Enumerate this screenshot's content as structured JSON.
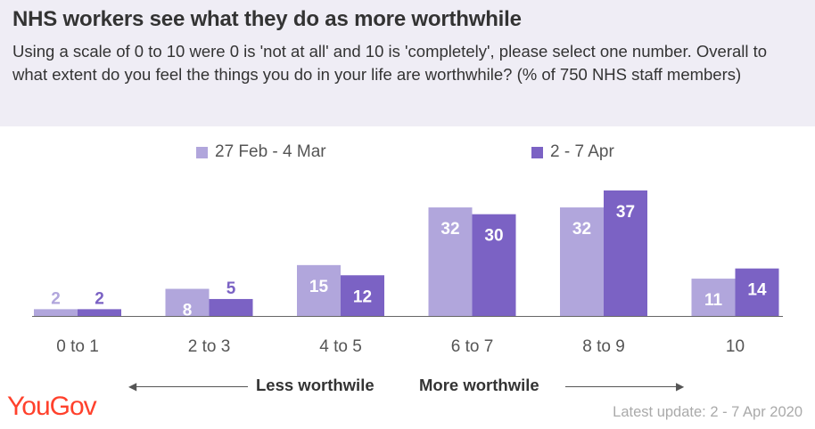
{
  "title": "NHS workers see what they do as more worthwhile",
  "subtitle": "Using a scale of 0 to 10 were 0 is 'not at all' and 10 is 'completely', please select one number. Overall to what extent do you feel the things you do in your life are worthwhile? (% of 750 NHS staff members)",
  "axis_annotations": {
    "less": "Less worthwile",
    "more": "More worthwile"
  },
  "brand": "YouGov",
  "latest_update": "Latest update: 2 - 7 Apr 2020",
  "colors": {
    "series1": "#b1a6dc",
    "series2": "#7b62c4",
    "header_bg": "#efedf5",
    "brand": "#ff412c"
  },
  "chart_data": {
    "type": "bar",
    "categories": [
      "0 to 1",
      "2 to 3",
      "4 to 5",
      "6 to 7",
      "8 to 9",
      "10"
    ],
    "series": [
      {
        "name": "27 Feb - 4 Mar",
        "values": [
          2,
          8,
          15,
          32,
          32,
          11
        ]
      },
      {
        "name": "2 - 7 Apr",
        "values": [
          2,
          5,
          12,
          30,
          37,
          14
        ]
      }
    ],
    "title": "NHS workers see what they do as more worthwhile",
    "xlabel": "",
    "ylabel": "",
    "ylim": [
      0,
      37
    ],
    "grid": false,
    "legend": "top",
    "data_labels": true
  }
}
